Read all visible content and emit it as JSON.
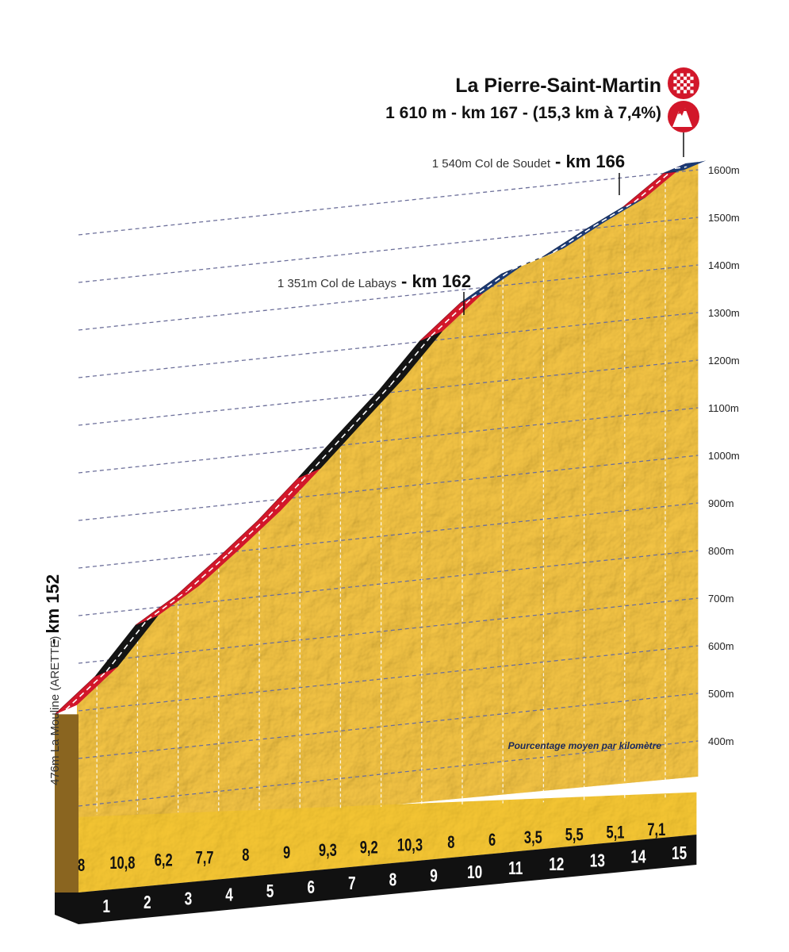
{
  "chart_data": {
    "type": "area",
    "summit": {
      "name": "La Pierre-Saint-Martin",
      "details": "1 610 m - km 167 - (15,3 km à 7,4%)"
    },
    "start_label": {
      "text": "476m La Mouline (ARETTE)",
      "km": "- km 152"
    },
    "passes": [
      {
        "text": "1 351m Col de Labays",
        "km": "- km 162",
        "x": 10.25,
        "y": 1351
      },
      {
        "text": "1 540m Col de Soudet",
        "km": "- km 166",
        "x": 14.3,
        "y": 1540
      }
    ],
    "altitude_ticks": [
      "400m",
      "500m",
      "600m",
      "700m",
      "800m",
      "900m",
      "1000m",
      "1100m",
      "1200m",
      "1300m",
      "1400m",
      "1500m",
      "1600m"
    ],
    "ylim": [
      350,
      1650
    ],
    "xlim": [
      0,
      15.3
    ],
    "profile": [
      {
        "x": 0,
        "y": 476
      },
      {
        "x": 1,
        "y": 556
      },
      {
        "x": 2,
        "y": 664
      },
      {
        "x": 3,
        "y": 726
      },
      {
        "x": 4,
        "y": 803
      },
      {
        "x": 5,
        "y": 883
      },
      {
        "x": 6,
        "y": 973
      },
      {
        "x": 7,
        "y": 1066
      },
      {
        "x": 8,
        "y": 1158
      },
      {
        "x": 9,
        "y": 1261
      },
      {
        "x": 10,
        "y": 1341
      },
      {
        "x": 11,
        "y": 1401
      },
      {
        "x": 12,
        "y": 1436
      },
      {
        "x": 13,
        "y": 1491
      },
      {
        "x": 14,
        "y": 1542
      },
      {
        "x": 15,
        "y": 1613
      }
    ],
    "km_labels": [
      "1",
      "2",
      "3",
      "4",
      "5",
      "6",
      "7",
      "8",
      "9",
      "10",
      "11",
      "12",
      "13",
      "14",
      "15"
    ],
    "percent_per_km": [
      "8",
      "10,8",
      "6,2",
      "7,7",
      "8",
      "9",
      "9,3",
      "9,2",
      "10,3",
      "8",
      "6",
      "3,5",
      "5,5",
      "5,1",
      "7,1"
    ],
    "legend_note": "Pourcentage moyen par kilomètre",
    "colors": {
      "terrain": "#e8b52c",
      "terrain_shade": "#c7901a",
      "front_face": "#f0c020",
      "side_face": "#8a6520",
      "base": "#111111",
      "red": "#d2172a",
      "blue": "#1c3a73",
      "black": "#141414",
      "dash": "#6c6f9a"
    }
  }
}
